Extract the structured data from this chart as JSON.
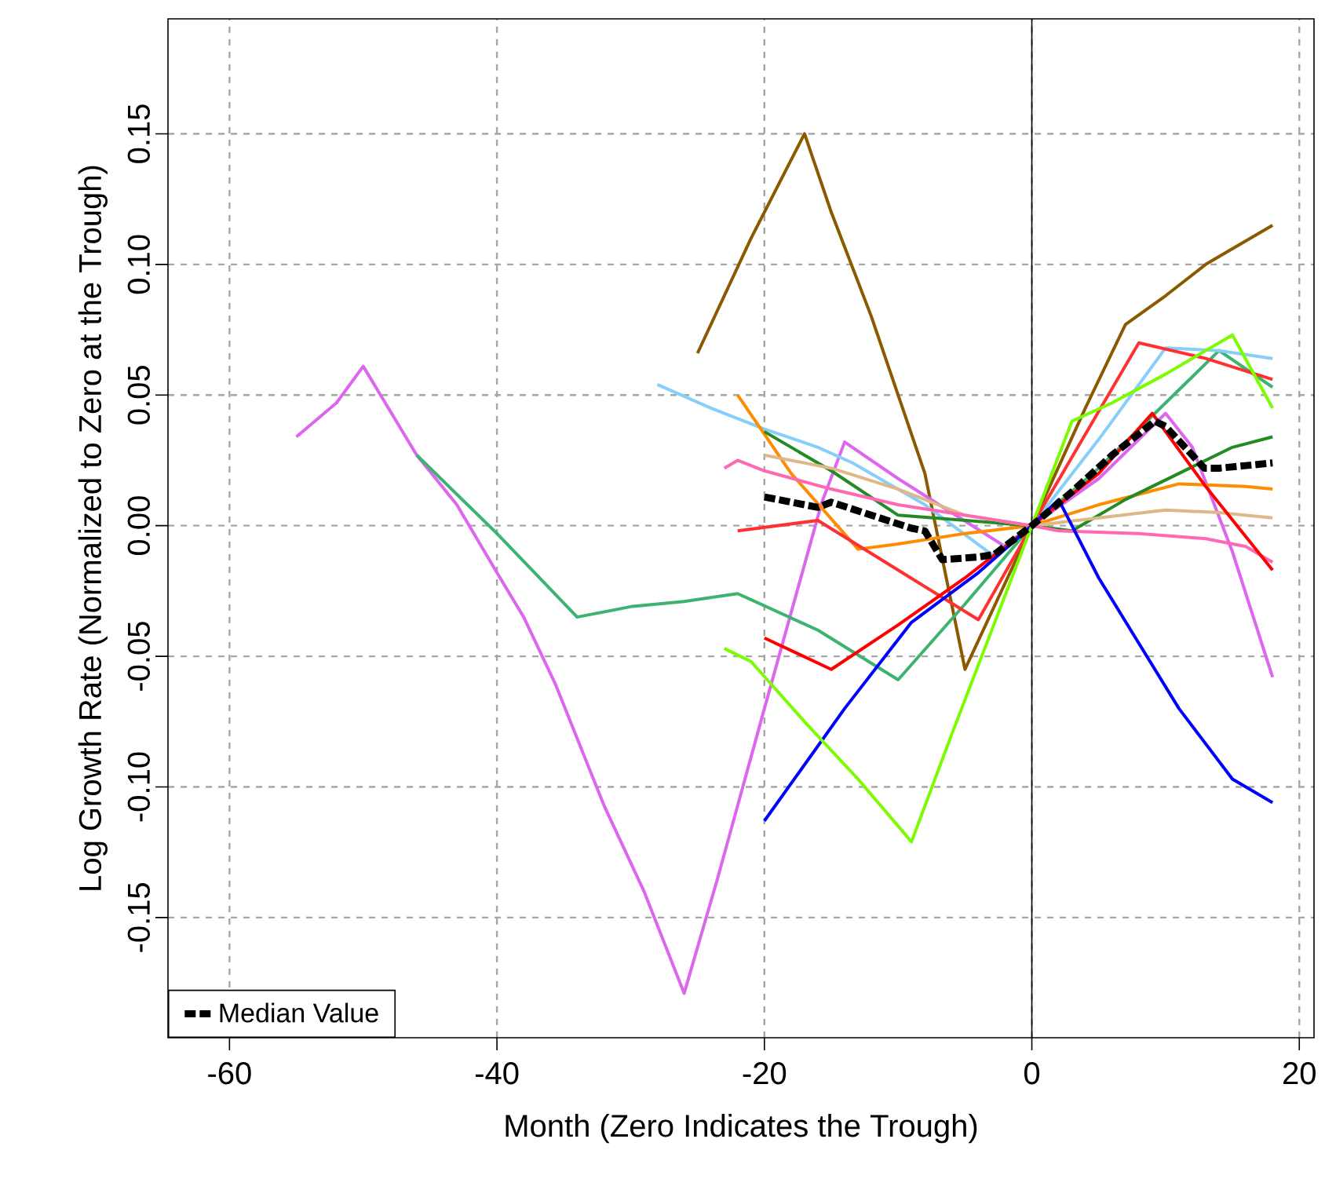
{
  "chart_data": {
    "type": "line",
    "xlabel": "Month (Zero Indicates the Trough)",
    "ylabel": "Log Growth Rate (Normalized to Zero at the Trough)",
    "xlim": [
      -64.6,
      21.1
    ],
    "ylim": [
      -0.196,
      0.194
    ],
    "xticks": [
      -60,
      -40,
      -20,
      0,
      20
    ],
    "yticks": [
      -0.15,
      {
        "value": -0.1,
        "label": "-0.10"
      },
      -0.05,
      {
        "value": 0,
        "label": "0.00"
      },
      0.05,
      {
        "value": 0.1,
        "label": "0.10"
      },
      0.15
    ],
    "grid": true,
    "legend": "bottom left",
    "ref_lines": [
      {
        "axis": "x",
        "value": 0,
        "color": "#000000"
      }
    ],
    "series": [
      {
        "color": "#8B5A00",
        "x": [
          -25,
          -21,
          -17,
          -15,
          -12,
          -8,
          -5,
          0,
          4,
          7,
          10,
          13,
          18
        ],
        "values": [
          0.066,
          0.11,
          0.15,
          0.12,
          0.08,
          0.02,
          -0.055,
          0,
          0.045,
          0.077,
          0.088,
          0.1,
          0.115
        ]
      },
      {
        "color": "#DD66EE",
        "x": [
          -55,
          -52,
          -50,
          -46,
          -43,
          -40,
          -38,
          -35.6,
          -32,
          -29,
          -26,
          -23.5,
          -20,
          -15.7,
          -14,
          -10,
          -6,
          -2,
          0,
          5,
          10,
          12,
          15,
          18
        ],
        "values": [
          0.034,
          0.047,
          0.061,
          0.027,
          0.008,
          -0.018,
          -0.035,
          -0.061,
          -0.107,
          -0.14,
          -0.179,
          -0.135,
          -0.07,
          0.009,
          0.032,
          0.018,
          0.005,
          -0.008,
          0,
          0.018,
          0.043,
          0.03,
          -0.01,
          -0.058
        ]
      },
      {
        "color": "#3CB371",
        "x": [
          -46,
          -40,
          -34,
          -30,
          -26,
          -22,
          -16,
          -10,
          -5,
          0,
          5,
          10,
          14,
          18
        ],
        "values": [
          0.027,
          -0.003,
          -0.035,
          -0.031,
          -0.029,
          -0.026,
          -0.04,
          -0.059,
          -0.03,
          0,
          0.022,
          0.047,
          0.067,
          0.053
        ]
      },
      {
        "color": "#87CEFA",
        "x": [
          -28,
          -24,
          -20,
          -16,
          -13.4,
          -8,
          -3,
          0,
          5,
          10,
          14,
          18
        ],
        "values": [
          0.054,
          0.045,
          0.037,
          0.03,
          0.024,
          0.008,
          -0.011,
          0,
          0.033,
          0.068,
          0.067,
          0.064
        ]
      },
      {
        "color": "#FF8C00",
        "x": [
          -22,
          -18,
          -13,
          -10,
          -5,
          0,
          5,
          8,
          11,
          16,
          18
        ],
        "values": [
          0.05,
          0.02,
          -0.009,
          -0.007,
          -0.003,
          0,
          0.008,
          0.012,
          0.016,
          0.015,
          0.014
        ]
      },
      {
        "color": "#228B22",
        "x": [
          -20,
          -15,
          -10,
          -5,
          0,
          3,
          7,
          11,
          15,
          18
        ],
        "values": [
          0.036,
          0.021,
          0.004,
          0.002,
          0,
          -0.002,
          0.01,
          0.02,
          0.03,
          0.034
        ]
      },
      {
        "color": "#DEB887",
        "x": [
          -20,
          -15,
          -10,
          -5,
          0,
          5,
          10,
          14,
          18
        ],
        "values": [
          0.027,
          0.022,
          0.014,
          0.004,
          0,
          0.003,
          0.006,
          0.005,
          0.003
        ]
      },
      {
        "color": "#FF69B4",
        "x": [
          -23,
          -22,
          -20,
          -15,
          -10,
          -5,
          0,
          2,
          8,
          13,
          16,
          18
        ],
        "values": [
          0.022,
          0.025,
          0.021,
          0.014,
          0.008,
          0.004,
          0,
          -0.002,
          -0.003,
          -0.005,
          -0.008,
          -0.014
        ]
      },
      {
        "color": "#FF3030",
        "x": [
          -22,
          -16,
          -10,
          -4,
          0,
          4,
          8,
          13,
          18
        ],
        "values": [
          -0.002,
          0.002,
          -0.017,
          -0.036,
          0,
          0.035,
          0.07,
          0.064,
          0.056
        ]
      },
      {
        "color": "#FF0000",
        "x": [
          -20,
          -15,
          -10,
          -5,
          0,
          5,
          9,
          13,
          18
        ],
        "values": [
          -0.043,
          -0.055,
          -0.038,
          -0.02,
          0,
          0.02,
          0.043,
          0.015,
          -0.017
        ]
      },
      {
        "color": "#0000FF",
        "x": [
          -20,
          -14,
          -9,
          -4,
          0,
          2,
          5,
          8,
          11,
          15,
          18
        ],
        "values": [
          -0.113,
          -0.07,
          -0.037,
          -0.018,
          0,
          0.01,
          -0.02,
          -0.045,
          -0.07,
          -0.097,
          -0.106
        ]
      },
      {
        "color": "#7CFC00",
        "x": [
          -23,
          -21,
          -17,
          -13,
          -9,
          -6,
          0,
          3,
          6,
          10,
          15,
          18
        ],
        "values": [
          -0.047,
          -0.052,
          -0.075,
          -0.097,
          -0.121,
          -0.08,
          0,
          0.04,
          0.047,
          0.058,
          0.073,
          0.045
        ]
      },
      {
        "name": "Median Value",
        "color": "#000000",
        "line_style": "dashed",
        "x": [
          -20,
          -17,
          -16,
          -15,
          -12,
          -9,
          -8,
          -6.7,
          -4,
          -2.8,
          0,
          3,
          6,
          9.2,
          10,
          12.9,
          14,
          16,
          18
        ],
        "values": [
          0.011,
          0.008,
          0.007,
          0.009,
          0.004,
          -0.001,
          -0.002,
          -0.013,
          -0.012,
          -0.011,
          0,
          0.013,
          0.027,
          0.04,
          0.038,
          0.022,
          0.022,
          0.023,
          0.024
        ]
      }
    ]
  }
}
